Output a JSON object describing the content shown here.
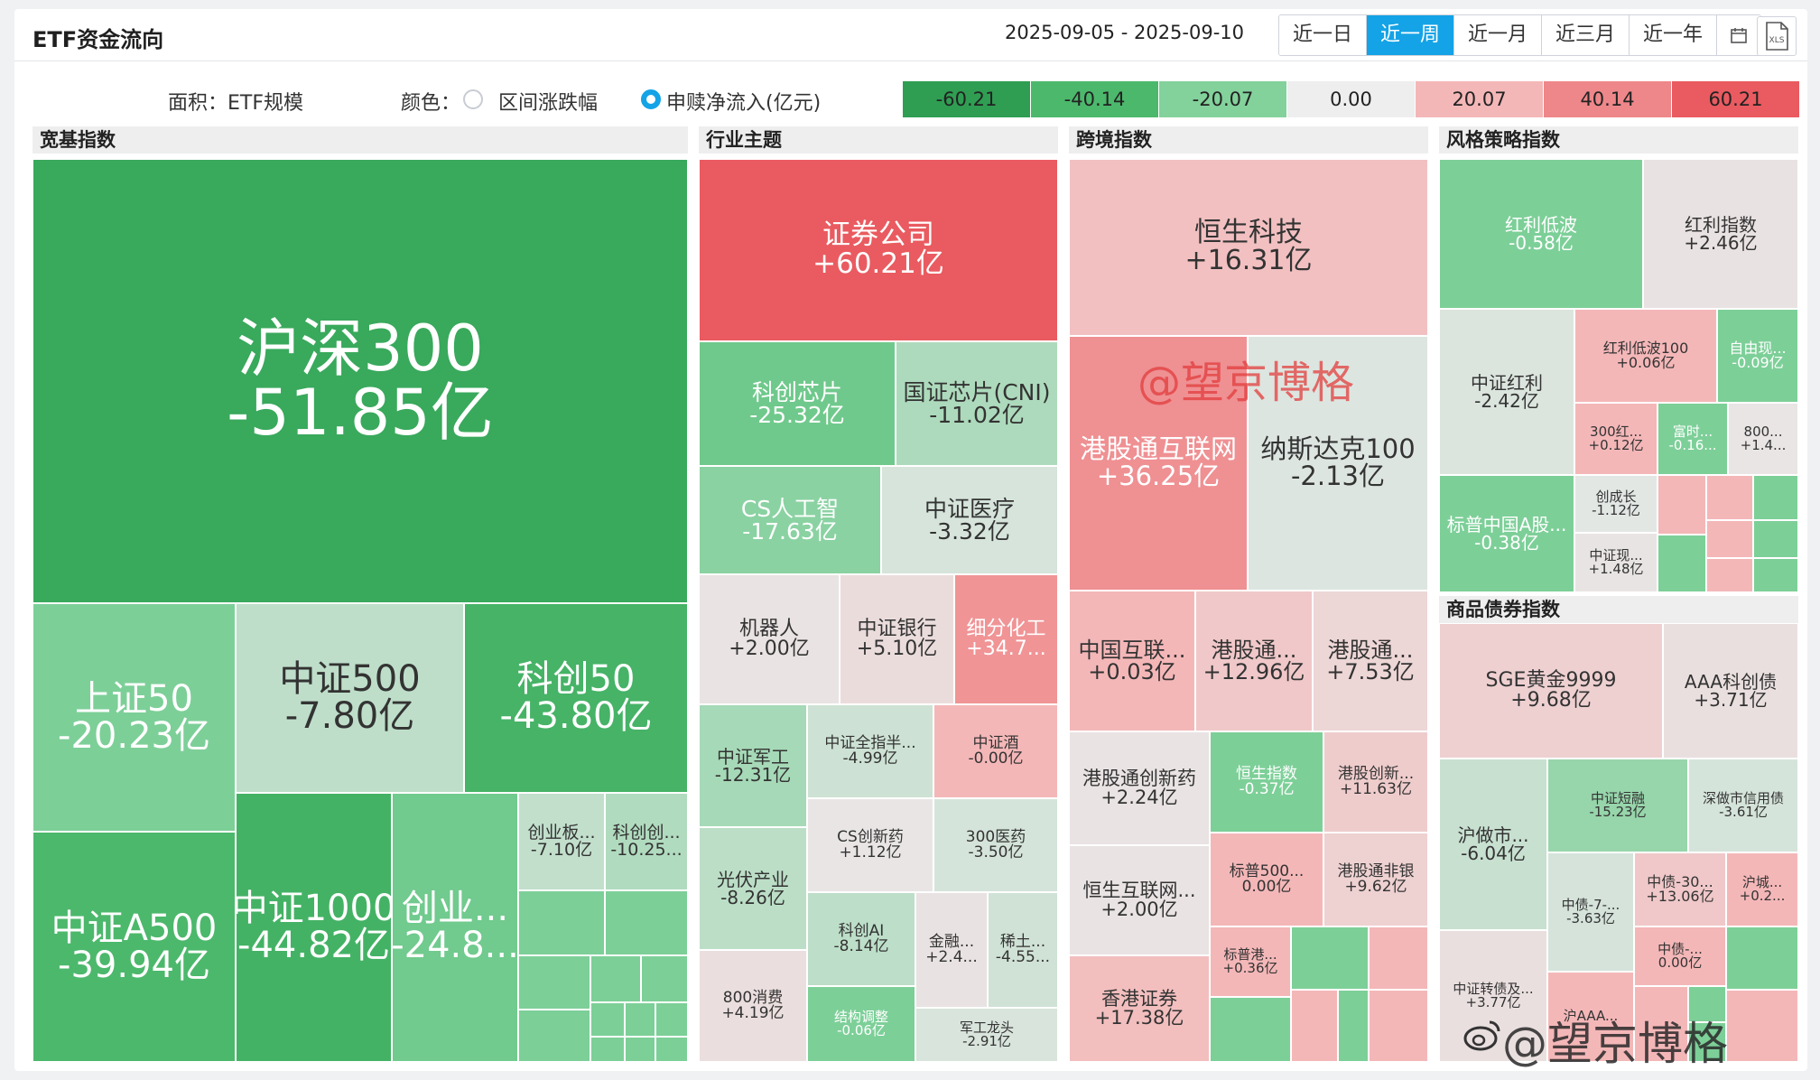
{
  "header": {
    "title": "ETF资金流向",
    "date_range": "2025-09-05 - 2025-09-10",
    "periods": [
      "近一日",
      "近一周",
      "近一月",
      "近三月",
      "近一年"
    ],
    "active_period": "近一周",
    "calendar_icon": "calendar-icon",
    "export_icon": "xls-export-icon",
    "export_label": "XLS"
  },
  "legend": {
    "area_label": "面积：ETF规模",
    "color_label": "颜色：",
    "option_change": "区间涨跌幅",
    "option_flow": "申赎净流入(亿元)",
    "selected": "option_flow",
    "scale": [
      {
        "value": "-60.21",
        "color": "#2f9e52"
      },
      {
        "value": "-40.14",
        "color": "#4cb86c"
      },
      {
        "value": "-20.07",
        "color": "#83d19b"
      },
      {
        "value": "0.00",
        "color": "#eeeeee"
      },
      {
        "value": "20.07",
        "color": "#f4b7b8"
      },
      {
        "value": "40.14",
        "color": "#ee878a"
      },
      {
        "value": "60.21",
        "color": "#e95b60"
      }
    ]
  },
  "watermark": {
    "text1": "@望京博格",
    "text2": "@望京博格",
    "icon": "weibo-icon"
  },
  "chart_data": {
    "type": "treemap",
    "size_metric": "ETF规模",
    "color_metric": "申赎净流入(亿元)",
    "color_range": [
      -60.21,
      60.21
    ],
    "groups": [
      {
        "name": "宽基指数",
        "items": [
          {
            "label": "沪深300",
            "value": "-51.85亿",
            "flow": -51.85
          },
          {
            "label": "上证50",
            "value": "-20.23亿",
            "flow": -20.23
          },
          {
            "label": "中证500",
            "value": "-7.80亿",
            "flow": -7.8
          },
          {
            "label": "科创50",
            "value": "-43.80亿",
            "flow": -43.8
          },
          {
            "label": "中证A500",
            "value": "-39.94亿",
            "flow": -39.94
          },
          {
            "label": "中证1000",
            "value": "-44.82亿",
            "flow": -44.82
          },
          {
            "label": "创业...",
            "value": "-24.8...",
            "flow": -24.8
          },
          {
            "label": "创业板...",
            "value": "-7.10亿",
            "flow": -7.1
          },
          {
            "label": "科创创...",
            "value": "-10.25...",
            "flow": -10.25
          }
        ]
      },
      {
        "name": "行业主题",
        "items": [
          {
            "label": "证券公司",
            "value": "+60.21亿",
            "flow": 60.21
          },
          {
            "label": "科创芯片",
            "value": "-25.32亿",
            "flow": -25.32
          },
          {
            "label": "国证芯片(CNI)",
            "value": "-11.02亿",
            "flow": -11.02
          },
          {
            "label": "CS人工智",
            "value": "-17.63亿",
            "flow": -17.63
          },
          {
            "label": "中证医疗",
            "value": "-3.32亿",
            "flow": -3.32
          },
          {
            "label": "机器人",
            "value": "+2.00亿",
            "flow": 2.0
          },
          {
            "label": "中证银行",
            "value": "+5.10亿",
            "flow": 5.1
          },
          {
            "label": "细分化工",
            "value": "+34.7...",
            "flow": 34.7
          },
          {
            "label": "中证军工",
            "value": "-12.31亿",
            "flow": -12.31
          },
          {
            "label": "中证全指半...",
            "value": "-4.99亿",
            "flow": -4.99
          },
          {
            "label": "中证酒",
            "value": "-0.00亿",
            "flow": -0.0
          },
          {
            "label": "CS创新药",
            "value": "+1.12亿",
            "flow": 1.12
          },
          {
            "label": "300医药",
            "value": "-3.50亿",
            "flow": -3.5
          },
          {
            "label": "光伏产业",
            "value": "-8.26亿",
            "flow": -8.26
          },
          {
            "label": "科创AI",
            "value": "-8.14亿",
            "flow": -8.14
          },
          {
            "label": "金融...",
            "value": "+2.4...",
            "flow": 2.4
          },
          {
            "label": "稀土...",
            "value": "-4.55...",
            "flow": -4.55
          },
          {
            "label": "800消费",
            "value": "+4.19亿",
            "flow": 4.19
          },
          {
            "label": "结构调整",
            "value": "-0.06亿",
            "flow": -0.06
          },
          {
            "label": "军工龙头",
            "value": "-2.91亿",
            "flow": -2.91
          }
        ]
      },
      {
        "name": "跨境指数",
        "items": [
          {
            "label": "恒生科技",
            "value": "+16.31亿",
            "flow": 16.31
          },
          {
            "label": "港股通互联网",
            "value": "+36.25亿",
            "flow": 36.25
          },
          {
            "label": "纳斯达克100",
            "value": "-2.13亿",
            "flow": -2.13
          },
          {
            "label": "中国互联...",
            "value": "+0.03亿",
            "flow": 0.03
          },
          {
            "label": "港股通...",
            "value": "+12.96亿",
            "flow": 12.96
          },
          {
            "label": "港股通...",
            "value": "+7.53亿",
            "flow": 7.53
          },
          {
            "label": "港股通创新药",
            "value": "+2.24亿",
            "flow": 2.24
          },
          {
            "label": "恒生指数",
            "value": "-0.37亿",
            "flow": -0.37
          },
          {
            "label": "港股创新...",
            "value": "+11.63亿",
            "flow": 11.63
          },
          {
            "label": "恒生互联网...",
            "value": "+2.00亿",
            "flow": 2.0
          },
          {
            "label": "标普500...",
            "value": "0.00亿",
            "flow": 0.0
          },
          {
            "label": "港股通非银",
            "value": "+9.62亿",
            "flow": 9.62
          },
          {
            "label": "标普港...",
            "value": "+0.36亿",
            "flow": 0.36
          },
          {
            "label": "香港证券",
            "value": "+17.38亿",
            "flow": 17.38
          }
        ]
      },
      {
        "name": "风格策略指数",
        "items": [
          {
            "label": "红利低波",
            "value": "-0.58亿",
            "flow": -0.58
          },
          {
            "label": "红利指数",
            "value": "+2.46亿",
            "flow": 2.46
          },
          {
            "label": "中证红利",
            "value": "-2.42亿",
            "flow": -2.42
          },
          {
            "label": "红利低波100",
            "value": "+0.06亿",
            "flow": 0.06
          },
          {
            "label": "自由现...",
            "value": "-0.09亿",
            "flow": -0.09
          },
          {
            "label": "300红...",
            "value": "+0.12亿",
            "flow": 0.12
          },
          {
            "label": "富时...",
            "value": "-0.16...",
            "flow": -0.16
          },
          {
            "label": "800...",
            "value": "+1.4...",
            "flow": 1.4
          },
          {
            "label": "标普中国A股...",
            "value": "-0.38亿",
            "flow": -0.38
          },
          {
            "label": "创成长",
            "value": "-1.12亿",
            "flow": -1.12
          },
          {
            "label": "中证现...",
            "value": "+1.48亿",
            "flow": 1.48
          }
        ]
      },
      {
        "name": "商品债券指数",
        "items": [
          {
            "label": "SGE黄金9999",
            "value": "+9.68亿",
            "flow": 9.68
          },
          {
            "label": "AAA科创债",
            "value": "+3.71亿",
            "flow": 3.71
          },
          {
            "label": "沪做市...",
            "value": "-6.04亿",
            "flow": -6.04
          },
          {
            "label": "中证短融",
            "value": "-15.23亿",
            "flow": -15.23
          },
          {
            "label": "深做市信用债",
            "value": "-3.61亿",
            "flow": -3.61
          },
          {
            "label": "中债-7-...",
            "value": "-3.63亿",
            "flow": -3.63
          },
          {
            "label": "中债-30...",
            "value": "+13.06亿",
            "flow": 13.06
          },
          {
            "label": "沪城...",
            "value": "+0.2...",
            "flow": 0.2
          },
          {
            "label": "中债-...",
            "value": "0.00亿",
            "flow": 0.0
          },
          {
            "label": "中证转债及...",
            "value": "+3.77亿",
            "flow": 3.77
          },
          {
            "label": "沪AAA...",
            "value": "",
            "flow": 0
          }
        ]
      }
    ]
  }
}
